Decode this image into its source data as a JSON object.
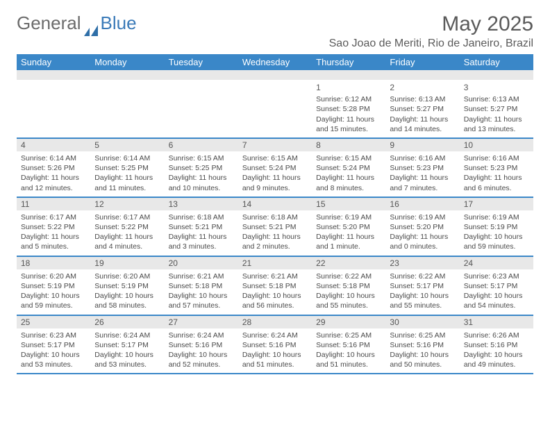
{
  "logo": {
    "text1": "General",
    "text2": "Blue"
  },
  "title": "May 2025",
  "subtitle": "Sao Joao de Meriti, Rio de Janeiro, Brazil",
  "colors": {
    "header_bg": "#3a87c8",
    "header_text": "#ffffff",
    "band": "#e8e8e8",
    "rule": "#3a87c8",
    "body_text": "#4a4a4a",
    "title_text": "#5a5a5a",
    "logo_gray": "#6b6b6b",
    "logo_blue": "#3a7ab8"
  },
  "weekdays": [
    "Sunday",
    "Monday",
    "Tuesday",
    "Wednesday",
    "Thursday",
    "Friday",
    "Saturday"
  ],
  "weeks": [
    [
      null,
      null,
      null,
      null,
      {
        "n": "1",
        "sr": "Sunrise: 6:12 AM",
        "ss": "Sunset: 5:28 PM",
        "dl": "Daylight: 11 hours and 15 minutes."
      },
      {
        "n": "2",
        "sr": "Sunrise: 6:13 AM",
        "ss": "Sunset: 5:27 PM",
        "dl": "Daylight: 11 hours and 14 minutes."
      },
      {
        "n": "3",
        "sr": "Sunrise: 6:13 AM",
        "ss": "Sunset: 5:27 PM",
        "dl": "Daylight: 11 hours and 13 minutes."
      }
    ],
    [
      {
        "n": "4",
        "sr": "Sunrise: 6:14 AM",
        "ss": "Sunset: 5:26 PM",
        "dl": "Daylight: 11 hours and 12 minutes."
      },
      {
        "n": "5",
        "sr": "Sunrise: 6:14 AM",
        "ss": "Sunset: 5:25 PM",
        "dl": "Daylight: 11 hours and 11 minutes."
      },
      {
        "n": "6",
        "sr": "Sunrise: 6:15 AM",
        "ss": "Sunset: 5:25 PM",
        "dl": "Daylight: 11 hours and 10 minutes."
      },
      {
        "n": "7",
        "sr": "Sunrise: 6:15 AM",
        "ss": "Sunset: 5:24 PM",
        "dl": "Daylight: 11 hours and 9 minutes."
      },
      {
        "n": "8",
        "sr": "Sunrise: 6:15 AM",
        "ss": "Sunset: 5:24 PM",
        "dl": "Daylight: 11 hours and 8 minutes."
      },
      {
        "n": "9",
        "sr": "Sunrise: 6:16 AM",
        "ss": "Sunset: 5:23 PM",
        "dl": "Daylight: 11 hours and 7 minutes."
      },
      {
        "n": "10",
        "sr": "Sunrise: 6:16 AM",
        "ss": "Sunset: 5:23 PM",
        "dl": "Daylight: 11 hours and 6 minutes."
      }
    ],
    [
      {
        "n": "11",
        "sr": "Sunrise: 6:17 AM",
        "ss": "Sunset: 5:22 PM",
        "dl": "Daylight: 11 hours and 5 minutes."
      },
      {
        "n": "12",
        "sr": "Sunrise: 6:17 AM",
        "ss": "Sunset: 5:22 PM",
        "dl": "Daylight: 11 hours and 4 minutes."
      },
      {
        "n": "13",
        "sr": "Sunrise: 6:18 AM",
        "ss": "Sunset: 5:21 PM",
        "dl": "Daylight: 11 hours and 3 minutes."
      },
      {
        "n": "14",
        "sr": "Sunrise: 6:18 AM",
        "ss": "Sunset: 5:21 PM",
        "dl": "Daylight: 11 hours and 2 minutes."
      },
      {
        "n": "15",
        "sr": "Sunrise: 6:19 AM",
        "ss": "Sunset: 5:20 PM",
        "dl": "Daylight: 11 hours and 1 minute."
      },
      {
        "n": "16",
        "sr": "Sunrise: 6:19 AM",
        "ss": "Sunset: 5:20 PM",
        "dl": "Daylight: 11 hours and 0 minutes."
      },
      {
        "n": "17",
        "sr": "Sunrise: 6:19 AM",
        "ss": "Sunset: 5:19 PM",
        "dl": "Daylight: 10 hours and 59 minutes."
      }
    ],
    [
      {
        "n": "18",
        "sr": "Sunrise: 6:20 AM",
        "ss": "Sunset: 5:19 PM",
        "dl": "Daylight: 10 hours and 59 minutes."
      },
      {
        "n": "19",
        "sr": "Sunrise: 6:20 AM",
        "ss": "Sunset: 5:19 PM",
        "dl": "Daylight: 10 hours and 58 minutes."
      },
      {
        "n": "20",
        "sr": "Sunrise: 6:21 AM",
        "ss": "Sunset: 5:18 PM",
        "dl": "Daylight: 10 hours and 57 minutes."
      },
      {
        "n": "21",
        "sr": "Sunrise: 6:21 AM",
        "ss": "Sunset: 5:18 PM",
        "dl": "Daylight: 10 hours and 56 minutes."
      },
      {
        "n": "22",
        "sr": "Sunrise: 6:22 AM",
        "ss": "Sunset: 5:18 PM",
        "dl": "Daylight: 10 hours and 55 minutes."
      },
      {
        "n": "23",
        "sr": "Sunrise: 6:22 AM",
        "ss": "Sunset: 5:17 PM",
        "dl": "Daylight: 10 hours and 55 minutes."
      },
      {
        "n": "24",
        "sr": "Sunrise: 6:23 AM",
        "ss": "Sunset: 5:17 PM",
        "dl": "Daylight: 10 hours and 54 minutes."
      }
    ],
    [
      {
        "n": "25",
        "sr": "Sunrise: 6:23 AM",
        "ss": "Sunset: 5:17 PM",
        "dl": "Daylight: 10 hours and 53 minutes."
      },
      {
        "n": "26",
        "sr": "Sunrise: 6:24 AM",
        "ss": "Sunset: 5:17 PM",
        "dl": "Daylight: 10 hours and 53 minutes."
      },
      {
        "n": "27",
        "sr": "Sunrise: 6:24 AM",
        "ss": "Sunset: 5:16 PM",
        "dl": "Daylight: 10 hours and 52 minutes."
      },
      {
        "n": "28",
        "sr": "Sunrise: 6:24 AM",
        "ss": "Sunset: 5:16 PM",
        "dl": "Daylight: 10 hours and 51 minutes."
      },
      {
        "n": "29",
        "sr": "Sunrise: 6:25 AM",
        "ss": "Sunset: 5:16 PM",
        "dl": "Daylight: 10 hours and 51 minutes."
      },
      {
        "n": "30",
        "sr": "Sunrise: 6:25 AM",
        "ss": "Sunset: 5:16 PM",
        "dl": "Daylight: 10 hours and 50 minutes."
      },
      {
        "n": "31",
        "sr": "Sunrise: 6:26 AM",
        "ss": "Sunset: 5:16 PM",
        "dl": "Daylight: 10 hours and 49 minutes."
      }
    ]
  ]
}
